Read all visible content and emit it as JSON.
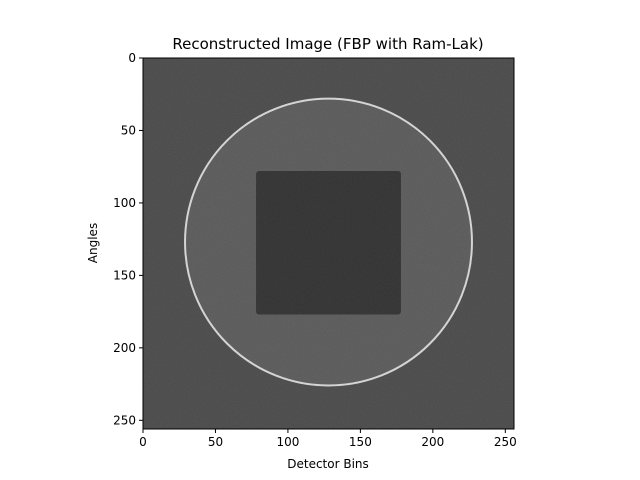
{
  "chart_data": {
    "type": "heatmap",
    "title": "Reconstructed Image (FBP with Ram-Lak)",
    "xlabel": "Detector Bins",
    "ylabel": "Angles",
    "xlim": [
      0,
      256
    ],
    "ylim": [
      256,
      0
    ],
    "x_ticks": [
      0,
      50,
      100,
      150,
      200,
      250
    ],
    "y_ticks": [
      0,
      50,
      100,
      150,
      200,
      250
    ],
    "colormap": "gray",
    "grid": false,
    "image": {
      "background_level": 0.23,
      "circle": {
        "center_x": 128,
        "center_y": 127,
        "radius": 99,
        "interior_level": 0.3,
        "rim_level": 0.85
      },
      "square": {
        "x_min": 78,
        "x_max": 178,
        "y_min": 78,
        "y_max": 177,
        "level": 0.12
      }
    }
  }
}
